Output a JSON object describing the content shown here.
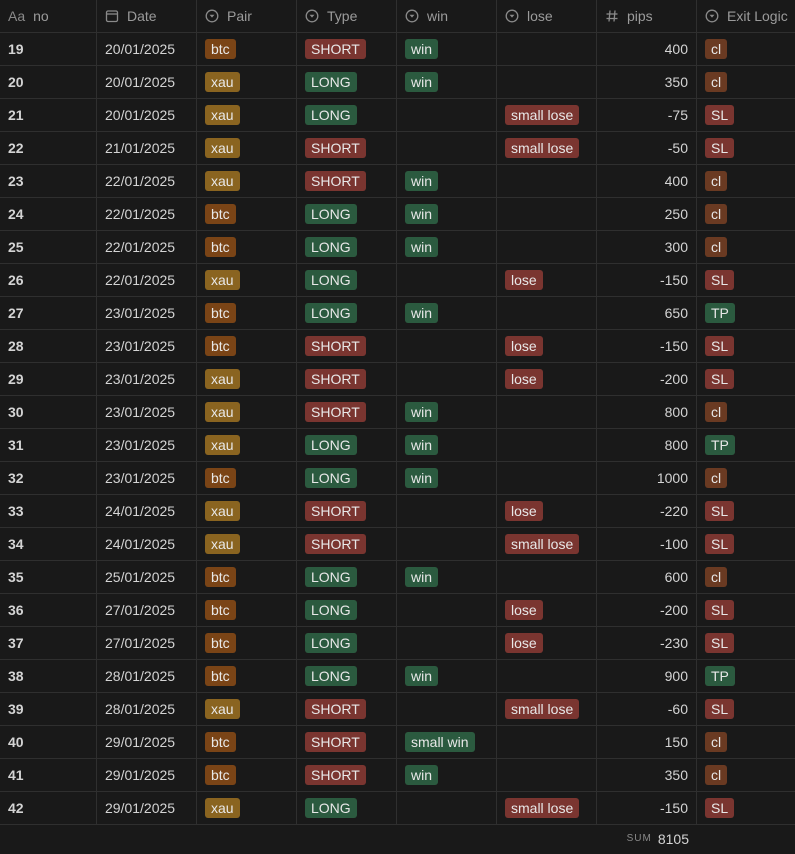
{
  "table": {
    "columns": [
      {
        "name": "no",
        "icon": "Aa",
        "kind": "title"
      },
      {
        "name": "Date",
        "kind": "date"
      },
      {
        "name": "Pair",
        "kind": "select"
      },
      {
        "name": "Type",
        "kind": "select"
      },
      {
        "name": "win",
        "kind": "select"
      },
      {
        "name": "lose",
        "kind": "select"
      },
      {
        "name": "pips",
        "kind": "number"
      },
      {
        "name": "Exit Logic",
        "kind": "select"
      }
    ],
    "tag_colors": {
      "btc": "#7a4416",
      "xau": "#8a6420",
      "SHORT": "#7a3530",
      "LONG": "#2b5a3f",
      "win": "#2b5a3f",
      "small win": "#2b5a3f",
      "lose": "#7a3530",
      "small lose": "#7a3530",
      "cl": "#6a3a22",
      "SL": "#7a3530",
      "TP": "#2b5a3f"
    },
    "rows": [
      [
        19,
        "20/01/2025",
        "btc",
        "SHORT",
        "win",
        null,
        400,
        "cl"
      ],
      [
        20,
        "20/01/2025",
        "xau",
        "LONG",
        "win",
        null,
        350,
        "cl"
      ],
      [
        21,
        "20/01/2025",
        "xau",
        "LONG",
        null,
        "small lose",
        -75,
        "SL"
      ],
      [
        22,
        "21/01/2025",
        "xau",
        "SHORT",
        null,
        "small lose",
        -50,
        "SL"
      ],
      [
        23,
        "22/01/2025",
        "xau",
        "SHORT",
        "win",
        null,
        400,
        "cl"
      ],
      [
        24,
        "22/01/2025",
        "btc",
        "LONG",
        "win",
        null,
        250,
        "cl"
      ],
      [
        25,
        "22/01/2025",
        "btc",
        "LONG",
        "win",
        null,
        300,
        "cl"
      ],
      [
        26,
        "22/01/2025",
        "xau",
        "LONG",
        null,
        "lose",
        -150,
        "SL"
      ],
      [
        27,
        "23/01/2025",
        "btc",
        "LONG",
        "win",
        null,
        650,
        "TP"
      ],
      [
        28,
        "23/01/2025",
        "btc",
        "SHORT",
        null,
        "lose",
        -150,
        "SL"
      ],
      [
        29,
        "23/01/2025",
        "xau",
        "SHORT",
        null,
        "lose",
        -200,
        "SL"
      ],
      [
        30,
        "23/01/2025",
        "xau",
        "SHORT",
        "win",
        null,
        800,
        "cl"
      ],
      [
        31,
        "23/01/2025",
        "xau",
        "LONG",
        "win",
        null,
        800,
        "TP"
      ],
      [
        32,
        "23/01/2025",
        "btc",
        "LONG",
        "win",
        null,
        1000,
        "cl"
      ],
      [
        33,
        "24/01/2025",
        "xau",
        "SHORT",
        null,
        "lose",
        -220,
        "SL"
      ],
      [
        34,
        "24/01/2025",
        "xau",
        "SHORT",
        null,
        "small lose",
        -100,
        "SL"
      ],
      [
        35,
        "25/01/2025",
        "btc",
        "LONG",
        "win",
        null,
        600,
        "cl"
      ],
      [
        36,
        "27/01/2025",
        "btc",
        "LONG",
        null,
        "lose",
        -200,
        "SL"
      ],
      [
        37,
        "27/01/2025",
        "btc",
        "LONG",
        null,
        "lose",
        -230,
        "SL"
      ],
      [
        38,
        "28/01/2025",
        "btc",
        "LONG",
        "win",
        null,
        900,
        "TP"
      ],
      [
        39,
        "28/01/2025",
        "xau",
        "SHORT",
        null,
        "small lose",
        -60,
        "SL"
      ],
      [
        40,
        "29/01/2025",
        "btc",
        "SHORT",
        "small win",
        null,
        150,
        "cl"
      ],
      [
        41,
        "29/01/2025",
        "btc",
        "SHORT",
        "win",
        null,
        350,
        "cl"
      ],
      [
        42,
        "29/01/2025",
        "xau",
        "LONG",
        null,
        "small lose",
        -150,
        "SL"
      ]
    ],
    "sum": {
      "label": "SUM",
      "value": 8105
    }
  }
}
